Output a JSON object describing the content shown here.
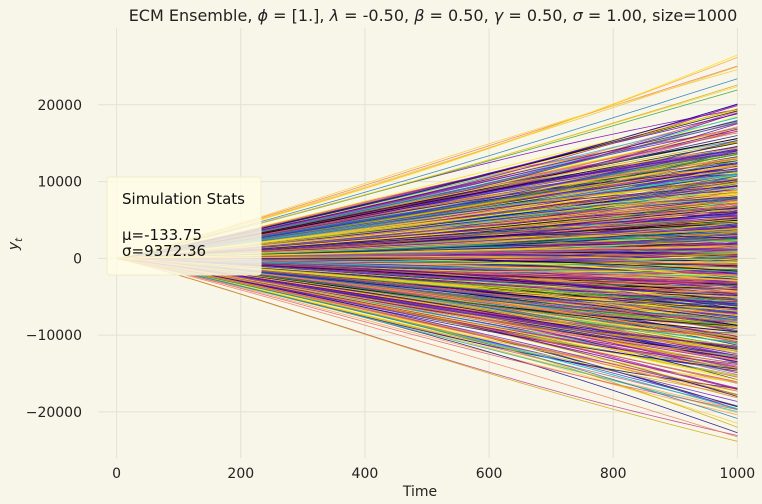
{
  "chart_data": {
    "type": "line",
    "title_parts": {
      "prefix": "ECM Ensemble, ",
      "phi_sym": "ϕ",
      "phi_val": " = [1.], ",
      "lambda_sym": "λ",
      "lambda_val": " = -0.50, ",
      "beta_sym": "β",
      "beta_val": " = 0.50, ",
      "gamma_sym": "γ",
      "gamma_val": " = 0.50, ",
      "sigma_sym": "σ",
      "sigma_val": " = 1.00, ",
      "suffix": "size=1000"
    },
    "xlabel": "Time",
    "ylabel_base": "y",
    "ylabel_sub": "t",
    "xlim": [
      -30,
      1030
    ],
    "ylim": [
      -26000,
      30000
    ],
    "x_ticks": [
      0,
      200,
      400,
      600,
      800,
      1000
    ],
    "x_tick_labels": [
      "0",
      "200",
      "400",
      "600",
      "800",
      "1000"
    ],
    "y_ticks": [
      -20000,
      -10000,
      0,
      10000,
      20000
    ],
    "y_tick_labels": [
      "−20000",
      "−10000",
      "0",
      "10000",
      "20000"
    ],
    "grid": true,
    "n_series": 1000,
    "x_range": [
      0,
      1000
    ],
    "envelope_at_end": [
      -24300,
      27400
    ],
    "series_colors": [
      "#0d0887",
      "#46039f",
      "#7201a8",
      "#9c179e",
      "#bd3786",
      "#d8576b",
      "#ed7953",
      "#fb9f3a",
      "#fdca26",
      "#f0f921",
      "#ffe000",
      "#c9a800",
      "#1f77b4",
      "#2ca02c",
      "#17becf",
      "#000000",
      "#3b2fd6",
      "#5a1ed1",
      "#e8c63a"
    ],
    "annotation": {
      "title": "Simulation Stats",
      "mean_label": "μ=-133.75",
      "std_label": "σ=9372.36"
    }
  }
}
